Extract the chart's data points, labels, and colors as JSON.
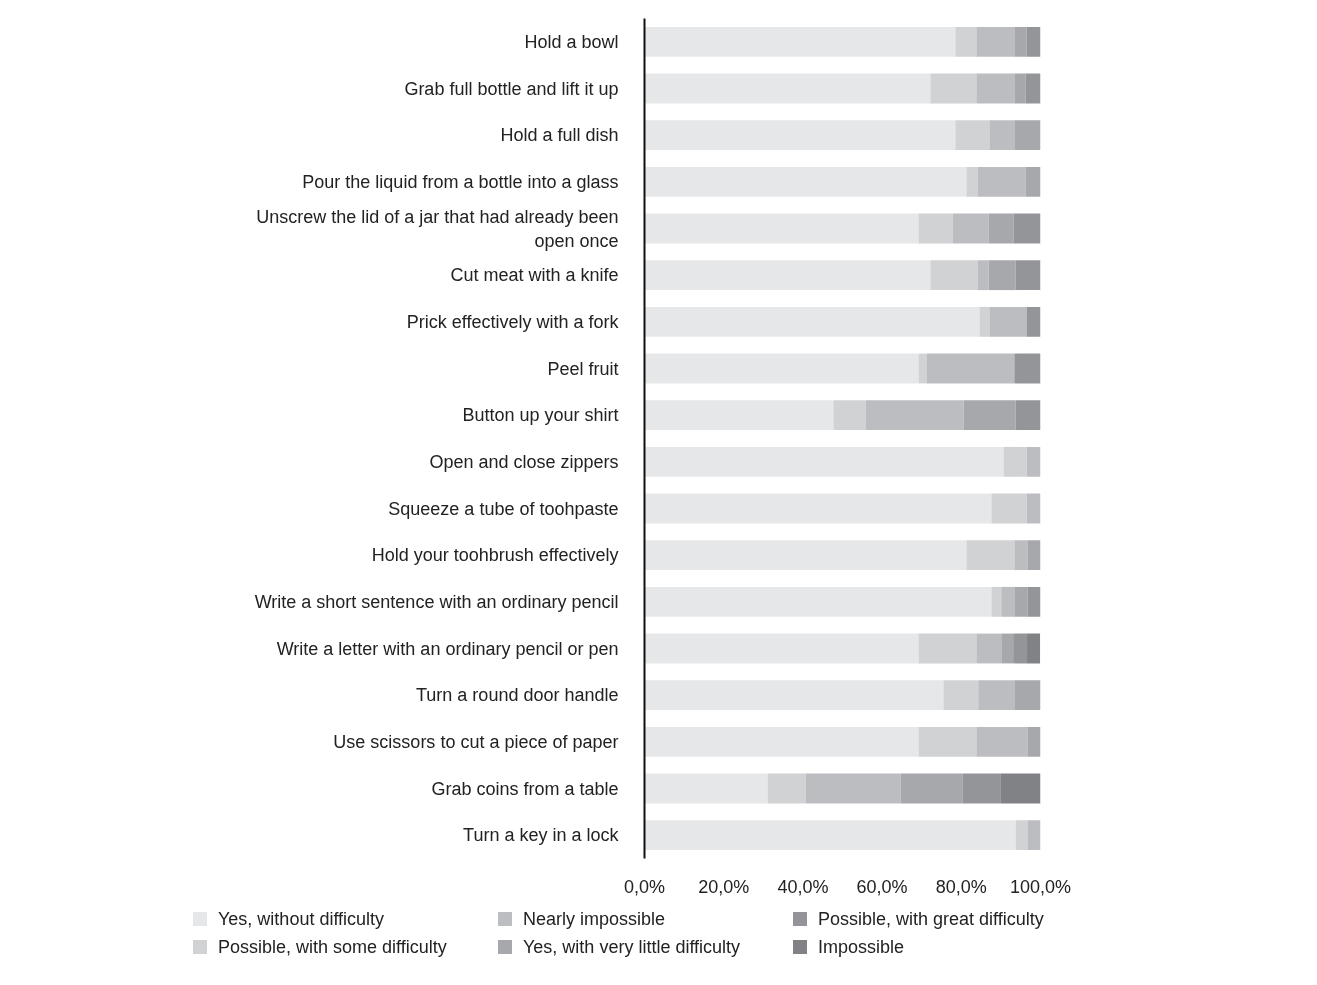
{
  "chart_data": {
    "type": "bar",
    "orientation": "horizontal",
    "stacked": true,
    "legend": "bottom",
    "grid": false,
    "categories": [
      "Hold a bowl",
      "Grab full bottle and lift it up",
      "Hold a full dish",
      "Pour the liquid from a bottle into a glass",
      "Unscrew the lid of a jar that had already been open once",
      "Cut meat with a knife",
      "Prick effectively with a fork",
      "Peel fruit",
      "Button up your shirt",
      "Open and close zippers",
      "Squeeze a tube of toohpaste",
      "Hold your toohbrush effectively",
      "Write a short sentence with an ordinary pencil",
      "Write a letter with an ordinary pencil or pen",
      "Turn a round door handle",
      "Use scissors to cut a piece of paper",
      "Grab coins from a table",
      "Turn a key in a lock"
    ],
    "xlim": [
      0,
      100
    ],
    "xticks": [
      {
        "value": 0,
        "label": "0,0%"
      },
      {
        "value": 20,
        "label": "20,0%"
      },
      {
        "value": 40,
        "label": "40,0%"
      },
      {
        "value": 60,
        "label": "60,0%"
      },
      {
        "value": 80,
        "label": "80,0%"
      },
      {
        "value": 100,
        "label": "100,0%"
      }
    ],
    "series": [
      {
        "name": "Yes, without difficulty",
        "color": "#e6e7e8",
        "values": [
          78.5,
          72.2,
          78.5,
          81.3,
          69.2,
          72.2,
          84.6,
          69.2,
          47.7,
          90.7,
          87.6,
          81.3,
          87.6,
          69.2,
          75.5,
          69.2,
          31.1,
          93.7
        ]
      },
      {
        "name": "Possible, with some difficulty",
        "color": "#d1d2d4",
        "values": [
          5.3,
          11.6,
          8.6,
          2.8,
          8.6,
          11.9,
          2.5,
          2.0,
          8.1,
          5.8,
          8.9,
          12.1,
          2.5,
          14.6,
          8.8,
          14.6,
          9.6,
          3.0
        ]
      },
      {
        "name": "Nearly impossible",
        "color": "#bcbdc0",
        "values": [
          9.6,
          9.6,
          6.3,
          12.1,
          9.1,
          2.8,
          9.4,
          22.2,
          24.8,
          3.5,
          3.5,
          3.3,
          3.3,
          6.3,
          9.1,
          12.9,
          24.0,
          3.3
        ]
      },
      {
        "name": "Yes, with very little difficulty",
        "color": "#a7a8ab",
        "values": [
          3.1,
          2.8,
          6.6,
          3.8,
          6.3,
          6.8,
          0,
          0,
          13.1,
          0,
          0,
          3.3,
          3.3,
          3.0,
          6.6,
          3.3,
          15.7,
          0
        ]
      },
      {
        "name": "Possible, with great difficulty",
        "color": "#939598",
        "values": [
          3.5,
          3.8,
          0,
          0,
          6.8,
          6.3,
          3.5,
          6.6,
          6.3,
          0,
          0,
          0,
          3.3,
          3.5,
          0,
          0,
          9.6,
          0
        ]
      },
      {
        "name": "Impossible",
        "color": "#808285",
        "values": [
          0,
          0,
          0,
          0,
          0,
          0,
          0,
          0,
          0,
          0,
          0,
          0,
          0,
          3.3,
          0,
          0,
          10.1,
          0
        ]
      }
    ]
  }
}
